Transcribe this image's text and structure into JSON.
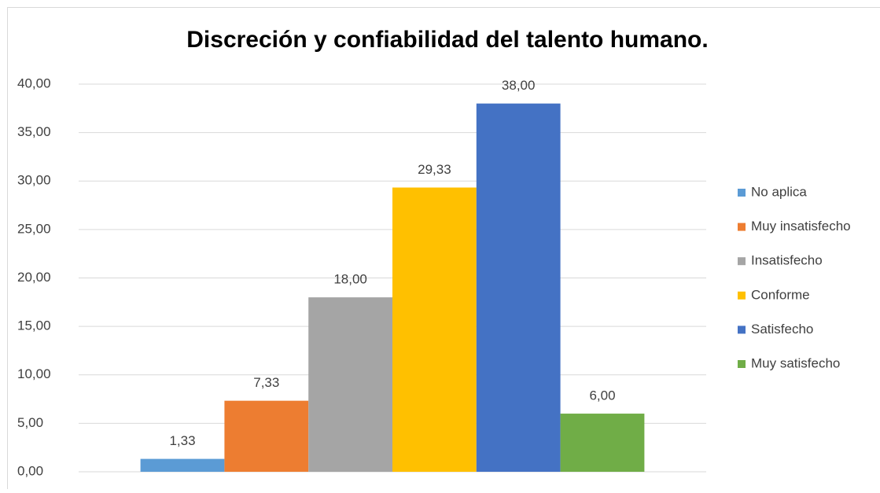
{
  "chart_data": {
    "type": "bar",
    "title": "Discreción y confiabilidad del talento humano.",
    "categories": [
      null
    ],
    "series": [
      {
        "name": "No aplica",
        "color": "#5b9bd5",
        "values": [
          1.33
        ],
        "value_labels": [
          "1,33"
        ]
      },
      {
        "name": "Muy insatisfecho",
        "color": "#ed7d31",
        "values": [
          7.33
        ],
        "value_labels": [
          "7,33"
        ]
      },
      {
        "name": "Insatisfecho",
        "color": "#a5a5a5",
        "values": [
          18.0
        ],
        "value_labels": [
          "18,00"
        ]
      },
      {
        "name": "Conforme",
        "color": "#ffc000",
        "values": [
          29.33
        ],
        "value_labels": [
          "29,33"
        ]
      },
      {
        "name": "Satisfecho",
        "color": "#4472c4",
        "values": [
          38.0
        ],
        "value_labels": [
          "38,00"
        ]
      },
      {
        "name": "Muy satisfecho",
        "color": "#70ad47",
        "values": [
          6.0
        ],
        "value_labels": [
          "6,00"
        ]
      }
    ],
    "ylim": [
      0,
      40
    ],
    "yticks": [
      {
        "value": 0,
        "label": "0,00"
      },
      {
        "value": 5,
        "label": "5,00"
      },
      {
        "value": 10,
        "label": "10,00"
      },
      {
        "value": 15,
        "label": "15,00"
      },
      {
        "value": 20,
        "label": "20,00"
      },
      {
        "value": 25,
        "label": "25,00"
      },
      {
        "value": 30,
        "label": "30,00"
      },
      {
        "value": 35,
        "label": "35,00"
      },
      {
        "value": 40,
        "label": "40,00"
      }
    ],
    "grid": true,
    "legend": "right"
  }
}
